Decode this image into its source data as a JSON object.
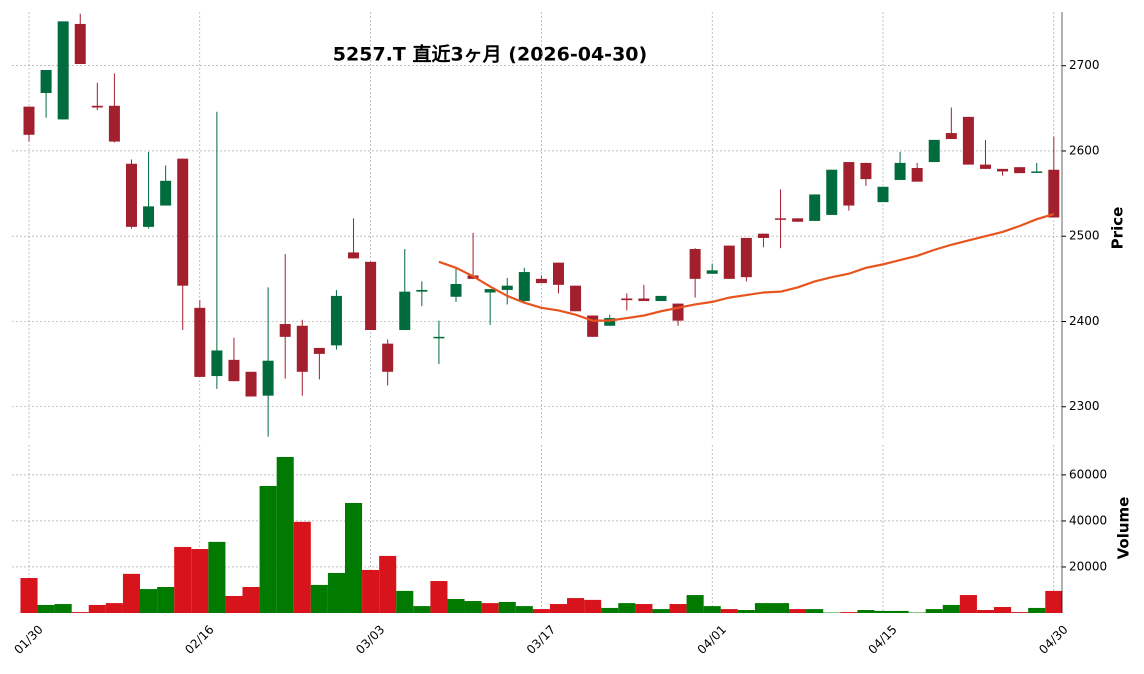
{
  "chart_data": {
    "type": "candlestick",
    "title": "5257.T  直近3ヶ月  (2026-04-30)",
    "y_label": "Price",
    "y2_label": "Volume",
    "categories": [
      "01/30",
      null,
      null,
      null,
      null,
      null,
      null,
      null,
      null,
      null,
      "02/16",
      null,
      null,
      null,
      null,
      null,
      null,
      null,
      null,
      null,
      "03/03",
      null,
      null,
      null,
      null,
      null,
      null,
      null,
      null,
      null,
      "03/17",
      null,
      null,
      null,
      null,
      null,
      null,
      null,
      null,
      null,
      "04/01",
      null,
      null,
      null,
      null,
      null,
      null,
      null,
      null,
      null,
      "04/15",
      null,
      null,
      null,
      null,
      null,
      null,
      null,
      null,
      null,
      "04/30"
    ],
    "open": [
      2652,
      2668,
      2637,
      2749,
      2653,
      2653,
      2585,
      2511,
      2536,
      2591,
      2416,
      2336,
      2355,
      2341,
      2313,
      2397,
      2395,
      2369,
      2372,
      2481,
      2470,
      2374,
      2390,
      2435,
      2381,
      2429,
      2454,
      2434,
      2437,
      2424,
      2450,
      2469,
      2442,
      2407,
      2395,
      2427,
      2427,
      2424,
      2421,
      2485,
      2456,
      2489,
      2498,
      2503,
      2521,
      2521,
      2518,
      2525,
      2587,
      2586,
      2540,
      2566,
      2580,
      2587,
      2621,
      2640,
      2584,
      2579,
      2581,
      2575,
      2578
    ],
    "high": [
      2652,
      2695,
      2752,
      2761,
      2680,
      2691,
      2590,
      2599,
      2583,
      2591,
      2425,
      2646,
      2381,
      2341,
      2440,
      2479,
      2402,
      2369,
      2437,
      2521,
      2470,
      2379,
      2485,
      2447,
      2401,
      2463,
      2504,
      2438,
      2451,
      2463,
      2454,
      2469,
      2442,
      2407,
      2408,
      2433,
      2443,
      2430,
      2421,
      2486,
      2468,
      2489,
      2498,
      2503,
      2555,
      2521,
      2549,
      2578,
      2587,
      2586,
      2558,
      2599,
      2586,
      2613,
      2651,
      2640,
      2613,
      2579,
      2581,
      2586,
      2617
    ],
    "low": [
      2611,
      2639,
      2637,
      2702,
      2648,
      2610,
      2509,
      2509,
      2536,
      2390,
      2335,
      2321,
      2330,
      2312,
      2265,
      2333,
      2313,
      2332,
      2367,
      2474,
      2390,
      2325,
      2390,
      2418,
      2350,
      2423,
      2450,
      2396,
      2420,
      2422,
      2445,
      2433,
      2412,
      2382,
      2395,
      2413,
      2424,
      2424,
      2395,
      2428,
      2456,
      2450,
      2447,
      2487,
      2486,
      2517,
      2518,
      2525,
      2530,
      2559,
      2540,
      2566,
      2564,
      2587,
      2614,
      2584,
      2579,
      2571,
      2574,
      2575,
      2522
    ],
    "close": [
      2619,
      2695,
      2752,
      2702,
      2651,
      2611,
      2511,
      2535,
      2565,
      2442,
      2335,
      2366,
      2330,
      2312,
      2354,
      2382,
      2341,
      2362,
      2430,
      2474,
      2390,
      2341,
      2435,
      2437,
      2382,
      2444,
      2450,
      2438,
      2442,
      2458,
      2445,
      2443,
      2412,
      2382,
      2404,
      2425,
      2424,
      2430,
      2401,
      2450,
      2460,
      2450,
      2452,
      2498,
      2520,
      2517,
      2549,
      2578,
      2536,
      2567,
      2558,
      2586,
      2564,
      2613,
      2614,
      2584,
      2579,
      2576,
      2574,
      2576,
      2522
    ],
    "ma": [
      null,
      null,
      null,
      null,
      null,
      null,
      null,
      null,
      null,
      null,
      null,
      null,
      null,
      null,
      null,
      null,
      null,
      null,
      null,
      null,
      null,
      null,
      null,
      null,
      2470,
      2463,
      2453,
      2441,
      2430,
      2422,
      2416,
      2413,
      2408,
      2401,
      2401,
      2404,
      2407,
      2412,
      2416,
      2420,
      2423,
      2428,
      2431,
      2434,
      2435,
      2440,
      2447,
      2452,
      2456,
      2463,
      2467,
      2472,
      2477,
      2484,
      2490,
      2495,
      2500,
      2505,
      2512,
      2520,
      2526
    ],
    "volume": [
      15200,
      3500,
      3900,
      400,
      3500,
      4300,
      17000,
      10400,
      11300,
      28700,
      27800,
      30900,
      7400,
      11300,
      55200,
      67800,
      39600,
      12200,
      17400,
      47800,
      18700,
      24800,
      9600,
      3000,
      13900,
      6100,
      5200,
      4300,
      4800,
      3000,
      1700,
      3900,
      6500,
      5700,
      2200,
      4300,
      3900,
      1700,
      3900,
      7800,
      3000,
      1700,
      1300,
      4300,
      4300,
      1700,
      1700,
      200,
      400,
      1300,
      900,
      900,
      200,
      1700,
      3500,
      7800,
      1300,
      2600,
      400,
      2200,
      9600
    ],
    "volume_up": [
      false,
      true,
      true,
      false,
      false,
      false,
      false,
      true,
      true,
      false,
      false,
      true,
      false,
      false,
      true,
      true,
      false,
      true,
      true,
      true,
      false,
      false,
      true,
      true,
      false,
      true,
      true,
      false,
      true,
      true,
      false,
      false,
      false,
      false,
      true,
      true,
      false,
      true,
      false,
      true,
      true,
      false,
      true,
      true,
      true,
      false,
      true,
      true,
      false,
      true,
      true,
      true,
      true,
      true,
      true,
      false,
      false,
      false,
      false,
      true,
      false
    ],
    "up_color": "#006b3c",
    "down_color": "#a21f2d",
    "ma_color": "#e8541e",
    "volume_up_color": "#007a00",
    "volume_down_color": "#d7141c",
    "ylim": [
      2261,
      2763
    ],
    "yticks": [
      2300,
      2400,
      2500,
      2600,
      2700
    ],
    "y2lim": [
      0,
      73000
    ],
    "y2ticks": [
      20000,
      40000,
      60000
    ],
    "grid": true
  }
}
